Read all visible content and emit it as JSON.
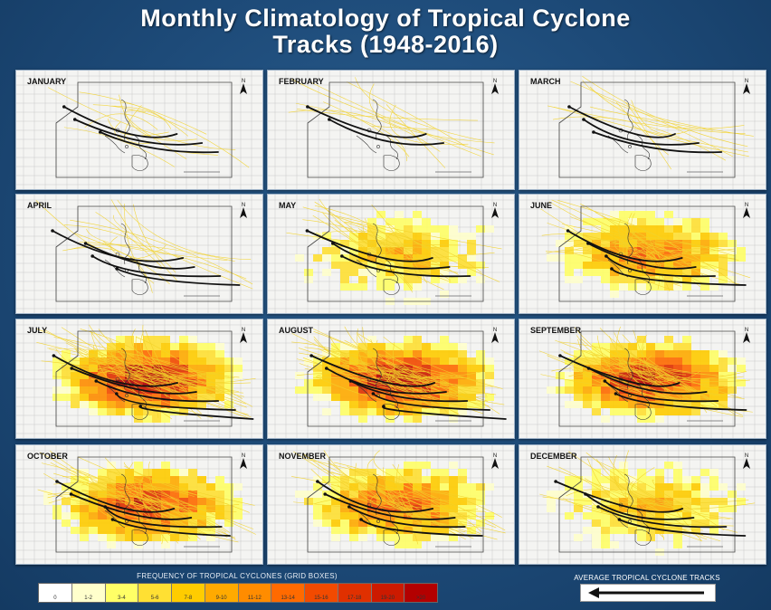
{
  "title": {
    "line1": "Monthly Climatology of Tropical Cyclone",
    "line2": "Tracks (1948-2016)"
  },
  "months": [
    "JANUARY",
    "FEBRUARY",
    "MARCH",
    "APRIL",
    "MAY",
    "JUNE",
    "JULY",
    "AUGUST",
    "SEPTEMBER",
    "OCTOBER",
    "NOVEMBER",
    "DECEMBER"
  ],
  "north_label": "N",
  "legend": {
    "title": "FREQUENCY OF TROPICAL CYCLONES (GRID BOXES)",
    "classes": [
      {
        "label": "0",
        "color": "#ffffff"
      },
      {
        "label": "1-2",
        "color": "#ffffcc"
      },
      {
        "label": "3-4",
        "color": "#ffff66"
      },
      {
        "label": "5-6",
        "color": "#ffe033"
      },
      {
        "label": "7-8",
        "color": "#ffcc00"
      },
      {
        "label": "9-10",
        "color": "#ffaa00"
      },
      {
        "label": "11-12",
        "color": "#ff8c00"
      },
      {
        "label": "13-14",
        "color": "#ff6a00"
      },
      {
        "label": "15-16",
        "color": "#f24a00"
      },
      {
        "label": "17-18",
        "color": "#e03000"
      },
      {
        "label": "19-20",
        "color": "#cc1a00"
      },
      {
        "label": ">20",
        "color": "#b30000"
      }
    ]
  },
  "tracks_legend": {
    "label": "AVERAGE TROPICAL CYCLONE TRACKS"
  },
  "colors": {
    "background": "#1d4a78",
    "track_arrow": "#111111",
    "individual_tracks": "#f2d22a"
  }
}
